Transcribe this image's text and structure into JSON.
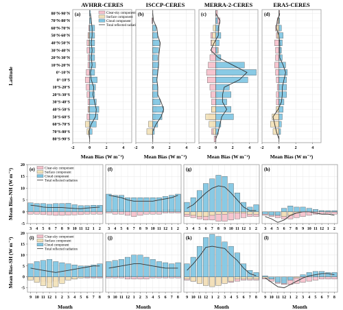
{
  "chart_data": {
    "colors": {
      "clear": "#f5c0cb",
      "surface": "#f2e2b8",
      "cloud": "#7fc6e3",
      "total": "#333333",
      "frame": "#999999",
      "grid": "#e6e6e6"
    },
    "legend": [
      "Clear-sky component",
      "Surface component",
      "Cloud component",
      "Total reflected radiation"
    ],
    "top": {
      "type": "bar",
      "orientation": "horizontal",
      "ylabel": "Latitude",
      "xlabel": "Mean Bias (W m⁻²)",
      "xlim": [
        -2,
        5
      ],
      "xticks": [
        "-2",
        "0",
        "2",
        "4"
      ],
      "categories": [
        "80°N-90°N",
        "70°N-80°N",
        "60°N-70°N",
        "50°N-60°N",
        "40°N-50°N",
        "30°N-40°N",
        "20°N-30°N",
        "10°N-20°N",
        "0°-10°N",
        "0°-10°S",
        "10°S-20°S",
        "20°S-30°S",
        "30°S-40°S",
        "40°S-50°S",
        "50°S-60°S",
        "60°S-70°S",
        "70°S-80°S",
        "80°S-90°S"
      ],
      "panels": [
        {
          "tag": "(a)",
          "title": "AVHRR-CERES",
          "clear": [
            0.0,
            0.1,
            -0.1,
            -0.2,
            -0.3,
            -0.3,
            -0.2,
            -0.2,
            -0.4,
            -0.5,
            -0.4,
            -0.3,
            -0.2,
            -0.2,
            -0.3,
            -0.2,
            -0.1,
            0.0
          ],
          "surface": [
            0.0,
            0.1,
            0.1,
            -0.1,
            -0.1,
            0.0,
            0.0,
            0.0,
            0.0,
            0.0,
            0.0,
            0.0,
            0.0,
            -0.1,
            0.1,
            -0.5,
            -0.3,
            0.0
          ],
          "cloud": [
            0.1,
            0.2,
            0.6,
            0.6,
            0.6,
            0.6,
            0.6,
            0.7,
            0.6,
            0.9,
            0.7,
            0.6,
            0.8,
            1.1,
            1.0,
            0.8,
            0.3,
            0.0
          ],
          "total": [
            0.1,
            0.2,
            0.3,
            0.3,
            0.2,
            0.3,
            0.2,
            0.3,
            0.1,
            0.2,
            0.5,
            0.4,
            0.6,
            0.8,
            0.7,
            0.2,
            -0.1,
            0.0
          ]
        },
        {
          "tag": "(b)",
          "title": "ISCCP-CERES",
          "clear": [
            0.0,
            -0.1,
            0.2,
            0.1,
            0.1,
            0.2,
            0.2,
            0.3,
            0.3,
            0.3,
            0.2,
            0.2,
            0.2,
            0.4,
            0.3,
            0.2,
            -0.2,
            0.0
          ],
          "surface": [
            0.0,
            0.0,
            0.3,
            0.2,
            0.2,
            0.4,
            0.0,
            0.0,
            0.0,
            0.0,
            0.0,
            0.0,
            0.1,
            0.1,
            0.2,
            -0.5,
            -0.7,
            0.0
          ],
          "cloud": [
            0.0,
            0.0,
            0.4,
            0.6,
            0.8,
            0.7,
            0.6,
            0.7,
            0.6,
            0.5,
            0.6,
            0.6,
            0.9,
            1.3,
            1.1,
            0.6,
            0.2,
            0.0
          ],
          "total": [
            0.0,
            0.1,
            0.5,
            0.6,
            0.9,
            0.8,
            0.7,
            0.7,
            0.6,
            0.5,
            0.6,
            0.6,
            1.0,
            1.3,
            1.0,
            0.4,
            0.0,
            0.0
          ]
        },
        {
          "tag": "(c)",
          "title": "MERRA-2-CERES",
          "clear": [
            0.2,
            0.5,
            0.3,
            -0.6,
            -0.6,
            -0.5,
            -0.7,
            -0.9,
            -1.1,
            -1.0,
            -0.7,
            -0.6,
            -0.5,
            -0.5,
            -0.8,
            -0.3,
            -0.5,
            -0.2
          ],
          "surface": [
            0.0,
            0.0,
            -0.3,
            -0.4,
            -0.5,
            0.3,
            0.5,
            0.2,
            0.2,
            0.0,
            0.0,
            0.2,
            0.1,
            -0.5,
            -1.2,
            -0.8,
            -0.3,
            0.0
          ],
          "cloud": [
            0.0,
            0.2,
            0.4,
            0.6,
            0.4,
            0.2,
            0.6,
            3.4,
            4.8,
            3.8,
            1.6,
            1.8,
            1.3,
            1.8,
            2.1,
            0.6,
            0.3,
            0.0
          ],
          "total": [
            0.0,
            0.5,
            0.3,
            0.3,
            -0.2,
            -0.6,
            0.3,
            2.0,
            3.7,
            2.8,
            1.0,
            0.8,
            0.8,
            1.3,
            0.7,
            0.5,
            0.3,
            0.0
          ]
        },
        {
          "tag": "(d)",
          "title": "ERA5-CERES",
          "clear": [
            0.1,
            -0.2,
            -0.4,
            -0.3,
            -0.5,
            -0.4,
            -0.4,
            -0.5,
            -0.4,
            -0.3,
            -0.2,
            -0.3,
            -0.3,
            -0.3,
            -0.5,
            -0.6,
            -0.3,
            0.0
          ],
          "surface": [
            0.0,
            -0.1,
            -0.3,
            -0.2,
            0.2,
            0.2,
            0.1,
            0.2,
            0.2,
            0.0,
            0.0,
            0.0,
            0.1,
            -0.3,
            -0.8,
            -1.0,
            -0.7,
            0.0
          ],
          "cloud": [
            0.0,
            0.1,
            0.3,
            0.5,
            0.4,
            0.3,
            0.4,
            0.8,
            1.0,
            0.9,
            0.9,
            0.9,
            0.6,
            0.5,
            0.4,
            0.3,
            0.2,
            0.0
          ],
          "total": [
            0.1,
            -0.2,
            -0.3,
            0.0,
            0.1,
            0.1,
            0.1,
            0.5,
            0.8,
            0.6,
            0.4,
            0.4,
            0.3,
            -0.1,
            -0.7,
            -0.5,
            -0.3,
            0.0
          ]
        }
      ]
    },
    "nh": {
      "type": "bar",
      "ylabel": "Mean Bias-NH (W m⁻²)",
      "ylim": [
        -5,
        20
      ],
      "yticks": [
        "-5",
        "0",
        "5",
        "10",
        "15",
        "20"
      ],
      "months": [
        "3",
        "4",
        "5",
        "6",
        "7",
        "8",
        "9",
        "10",
        "11",
        "12",
        "1",
        "2"
      ],
      "panels": [
        {
          "tag": "(e)",
          "clear": [
            -1.0,
            -1.0,
            -1.2,
            -1.3,
            -1.5,
            -1.5,
            -1.4,
            -1.3,
            -1.2,
            -1.0,
            -1.0,
            -1.0
          ],
          "surface": [
            0.5,
            0.4,
            0.4,
            0.3,
            0.3,
            0.3,
            0.3,
            0.3,
            0.3,
            0.4,
            0.4,
            0.4
          ],
          "cloud": [
            3.8,
            3.5,
            3.5,
            3.2,
            3.5,
            3.5,
            3.6,
            3.0,
            2.6,
            2.6,
            2.8,
            2.8
          ],
          "total": [
            2.8,
            2.5,
            2.0,
            1.8,
            1.8,
            1.8,
            1.6,
            1.4,
            1.3,
            1.6,
            1.8,
            2.0
          ]
        },
        {
          "tag": "(f)",
          "clear": [
            -0.5,
            -1.0,
            -1.0,
            -1.5,
            -2.0,
            -1.5,
            -1.0,
            -1.0,
            -1.0,
            -0.5,
            -0.5,
            -0.5
          ],
          "surface": [
            1.0,
            1.0,
            1.0,
            0.5,
            0.5,
            0.5,
            0.5,
            0.5,
            0.5,
            1.0,
            1.0,
            1.0
          ],
          "cloud": [
            7.5,
            7.0,
            7.0,
            6.0,
            6.0,
            6.0,
            6.0,
            6.0,
            6.0,
            6.5,
            7.0,
            7.5
          ],
          "total": [
            7.0,
            6.5,
            6.0,
            5.0,
            4.5,
            4.5,
            4.5,
            4.5,
            5.0,
            5.5,
            6.0,
            7.0
          ]
        },
        {
          "tag": "(g)",
          "clear": [
            -2.0,
            -2.5,
            -3.0,
            -3.5,
            -3.5,
            -4.0,
            -4.0,
            -3.5,
            -3.0,
            -2.5,
            -2.0,
            -2.0
          ],
          "surface": [
            -1.0,
            -1.5,
            -2.0,
            -2.0,
            -1.5,
            -1.0,
            -1.0,
            -0.5,
            -0.5,
            -0.5,
            -1.0,
            -1.0
          ],
          "cloud": [
            4.0,
            6.0,
            9.0,
            12.0,
            14.0,
            15.5,
            15.0,
            12.0,
            8.0,
            4.0,
            2.0,
            3.0
          ],
          "total": [
            1.5,
            3.0,
            5.5,
            8.0,
            10.0,
            11.0,
            10.5,
            8.0,
            5.0,
            2.0,
            0.5,
            0.5
          ]
        },
        {
          "tag": "(h)",
          "clear": [
            -1.5,
            -2.0,
            -2.5,
            -3.0,
            -3.0,
            -2.5,
            -2.0,
            -1.5,
            -1.0,
            -1.0,
            -1.0,
            -1.0
          ],
          "surface": [
            -0.5,
            -1.0,
            -1.5,
            -2.0,
            -1.5,
            -0.5,
            0.5,
            0.5,
            0.5,
            0.5,
            0.0,
            0.0
          ],
          "cloud": [
            -1.0,
            -1.5,
            -1.5,
            1.5,
            2.5,
            2.0,
            2.0,
            1.5,
            1.0,
            0.5,
            0.5,
            0.5
          ],
          "total": [
            -2.0,
            -3.0,
            -4.5,
            -3.5,
            -1.5,
            -0.5,
            0.0,
            0.0,
            -0.5,
            -1.0,
            -1.0,
            -1.5
          ]
        }
      ]
    },
    "sh": {
      "type": "bar",
      "ylabel": "Mean Bias-SH (W m⁻²)",
      "xlabel": "Month",
      "ylim": [
        -7,
        20
      ],
      "yticks": [
        "-5",
        "0",
        "5",
        "10",
        "15",
        "20"
      ],
      "months": [
        "9",
        "10",
        "11",
        "12",
        "1",
        "2",
        "3",
        "4",
        "5",
        "6",
        "7",
        "8"
      ],
      "panels": [
        {
          "tag": "(i)",
          "clear": [
            -1.0,
            -1.5,
            -2.0,
            -2.5,
            -2.0,
            -1.5,
            -1.0,
            -1.0,
            -0.5,
            -0.5,
            -0.5,
            -0.5
          ],
          "surface": [
            -1.5,
            -2.5,
            -4.0,
            -5.0,
            -4.5,
            -3.0,
            -1.5,
            -1.0,
            -0.5,
            0.0,
            0.0,
            0.0
          ],
          "cloud": [
            6.0,
            7.0,
            7.5,
            8.0,
            7.0,
            6.5,
            6.0,
            5.5,
            5.0,
            5.0,
            5.5,
            6.0
          ],
          "total": [
            4.0,
            3.5,
            3.0,
            2.5,
            2.0,
            2.5,
            3.0,
            3.5,
            4.0,
            4.5,
            5.0,
            5.0
          ]
        },
        {
          "tag": "(j)",
          "clear": [
            -0.5,
            -0.5,
            -0.5,
            -1.0,
            -1.0,
            -1.0,
            -1.0,
            -0.5,
            -0.5,
            -0.5,
            -0.5,
            -0.5
          ],
          "surface": [
            0.5,
            0.5,
            0.5,
            0.5,
            0.5,
            0.5,
            0.5,
            0.5,
            0.5,
            0.5,
            0.5,
            0.5
          ],
          "cloud": [
            7.0,
            7.5,
            8.0,
            9.0,
            10.0,
            10.0,
            9.0,
            8.0,
            7.0,
            6.5,
            6.0,
            6.5
          ],
          "total": [
            4.0,
            4.5,
            5.0,
            5.5,
            6.0,
            6.0,
            5.5,
            5.0,
            4.5,
            4.0,
            4.0,
            4.0
          ]
        },
        {
          "tag": "(k)",
          "clear": [
            -1.5,
            -2.0,
            -3.0,
            -3.5,
            -4.0,
            -3.5,
            -3.0,
            -2.5,
            -2.0,
            -1.5,
            -1.5,
            -1.5
          ],
          "surface": [
            -1.0,
            -2.0,
            -3.0,
            -4.0,
            -4.5,
            -4.0,
            -3.0,
            -2.0,
            -1.0,
            -1.0,
            -1.0,
            -1.0
          ],
          "cloud": [
            6.0,
            9.0,
            14.0,
            18.0,
            19.5,
            18.5,
            16.0,
            14.0,
            11.0,
            6.0,
            3.0,
            2.0
          ],
          "total": [
            3.0,
            6.0,
            9.5,
            13.5,
            14.0,
            13.5,
            13.0,
            10.0,
            7.5,
            4.0,
            1.5,
            0.5
          ]
        },
        {
          "tag": "(l)",
          "clear": [
            -1.0,
            -2.0,
            -3.0,
            -3.5,
            -3.5,
            -3.0,
            -2.5,
            -2.0,
            -1.5,
            -1.0,
            -1.0,
            -1.0
          ],
          "surface": [
            -0.5,
            -1.0,
            -1.5,
            -1.5,
            -1.0,
            -0.5,
            0.0,
            0.5,
            0.5,
            0.5,
            0.5,
            0.5
          ],
          "cloud": [
            0.5,
            -1.0,
            -2.5,
            -3.0,
            -1.5,
            0.0,
            1.0,
            2.0,
            2.5,
            2.5,
            2.0,
            2.0
          ],
          "total": [
            -0.5,
            -2.5,
            -4.5,
            -5.0,
            -3.5,
            -2.0,
            -0.5,
            0.5,
            1.0,
            1.5,
            1.5,
            1.0
          ]
        }
      ]
    }
  }
}
